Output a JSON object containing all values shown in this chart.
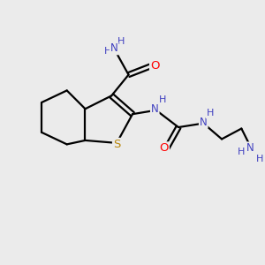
{
  "bg_color": "#ebebeb",
  "bond_color": "#000000",
  "S_color": "#b8860b",
  "N_color": "#4040c0",
  "O_color": "#ff0000",
  "fs": 8.5,
  "figsize": [
    3.0,
    3.0
  ],
  "dpi": 100,
  "lw": 1.6,
  "xlim": [
    0,
    10
  ],
  "ylim": [
    0,
    10
  ]
}
